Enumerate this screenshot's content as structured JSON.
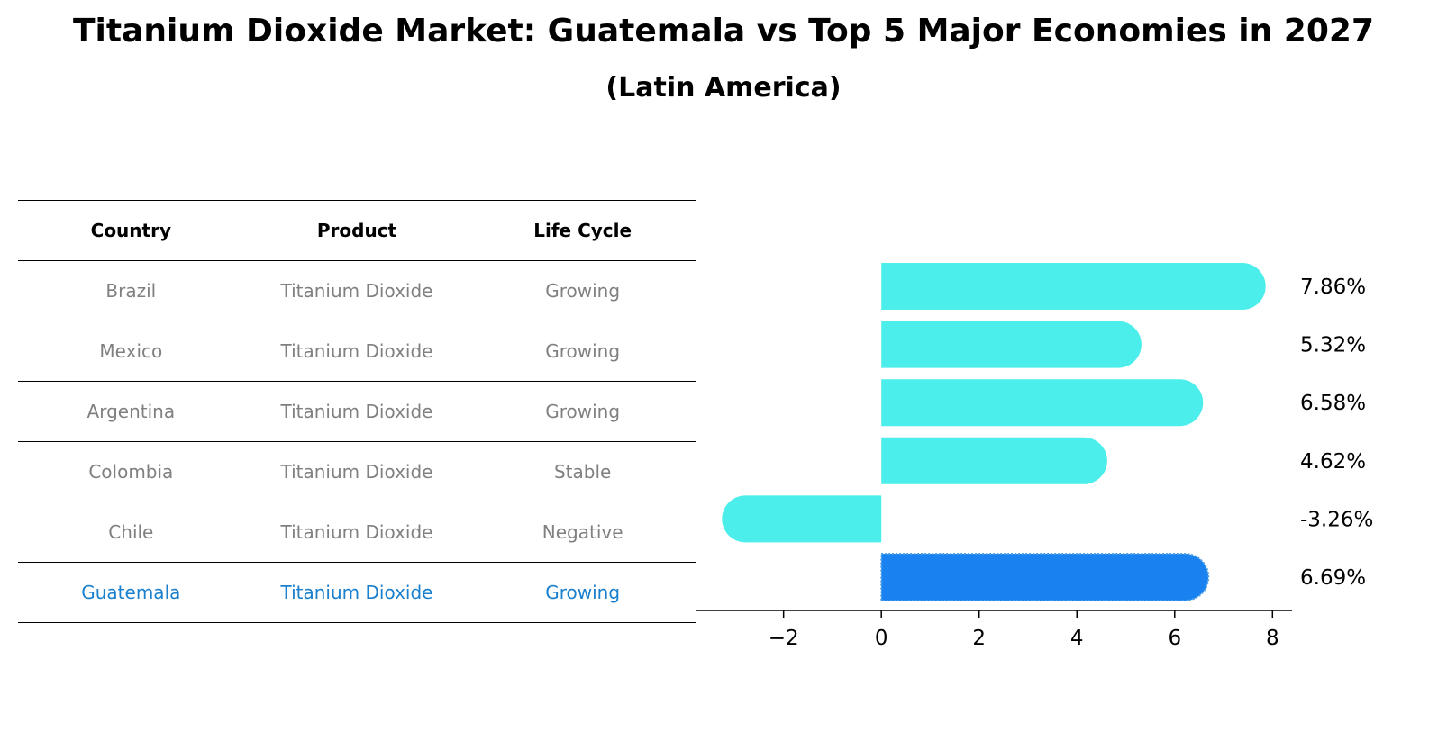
{
  "header": {
    "title": "Titanium Dioxide Market: Guatemala vs Top 5 Major Economies in 2027",
    "subtitle": "(Latin America)"
  },
  "table": {
    "columns": [
      "Country",
      "Product",
      "Life Cycle"
    ],
    "rows": [
      [
        "Brazil",
        "Titanium Dioxide",
        "Growing"
      ],
      [
        "Mexico",
        "Titanium Dioxide",
        "Growing"
      ],
      [
        "Argentina",
        "Titanium Dioxide",
        "Growing"
      ],
      [
        "Colombia",
        "Titanium Dioxide",
        "Stable"
      ],
      [
        "Chile",
        "Titanium Dioxide",
        "Negative"
      ],
      [
        "Guatemala",
        "Titanium Dioxide",
        "Growing"
      ]
    ],
    "highlight_row": 5
  },
  "chart_data": {
    "type": "bar",
    "orientation": "horizontal",
    "title": "Titanium Dioxide Market: Guatemala vs Top 5 Major Economies in 2027",
    "subtitle": "(Latin America)",
    "categories": [
      "Brazil",
      "Mexico",
      "Argentina",
      "Colombia",
      "Chile",
      "Guatemala"
    ],
    "values": [
      7.86,
      5.32,
      6.58,
      4.62,
      -3.26,
      6.69
    ],
    "labels": [
      "7.86%",
      "5.32%",
      "6.58%",
      "4.62%",
      "-3.26%",
      "6.69%"
    ],
    "highlight_index": 5,
    "colors": {
      "default": "#4beeea",
      "highlight": "#1a82f0",
      "table_highlight_text": "#1a7fcc",
      "table_text": "#808080"
    },
    "xlim": [
      -3.8,
      8.4
    ],
    "xticks": [
      -2,
      0,
      2,
      4,
      6,
      8
    ],
    "xtick_labels": [
      "−2",
      "0",
      "2",
      "4",
      "6",
      "8"
    ],
    "xlabel": "",
    "ylabel": "",
    "grid": false
  }
}
